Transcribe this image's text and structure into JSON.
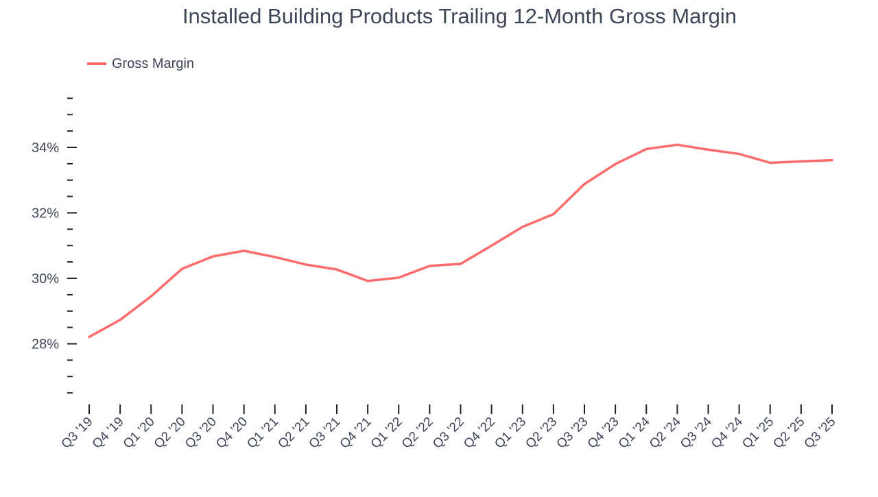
{
  "chart_data": {
    "type": "line",
    "title": "Installed Building Products Trailing 12-Month Gross Margin",
    "legend": {
      "position": "top-left",
      "entries": [
        "Gross Margin"
      ]
    },
    "xlabel": "",
    "ylabel": "",
    "ylim": [
      26.5,
      35.5
    ],
    "yticks": [
      28,
      30,
      32,
      34
    ],
    "ytick_labels": [
      "28%",
      "30%",
      "32%",
      "34%"
    ],
    "grid": false,
    "categories": [
      "Q3 '19",
      "Q4 '19",
      "Q1 '20",
      "Q2 '20",
      "Q3 '20",
      "Q4 '20",
      "Q1 '21",
      "Q2 '21",
      "Q3 '21",
      "Q4 '21",
      "Q1 '22",
      "Q2 '22",
      "Q3 '22",
      "Q4 '22",
      "Q1 '23",
      "Q2 '23",
      "Q3 '23",
      "Q4 '23",
      "Q1 '24",
      "Q2 '24",
      "Q3 '24",
      "Q4 '24",
      "Q1 '25",
      "Q2 '25",
      "Q3 '25"
    ],
    "series": [
      {
        "name": "Gross Margin",
        "color": "#ff6b6b",
        "values": [
          28.21,
          28.73,
          29.45,
          30.29,
          30.67,
          30.84,
          30.65,
          30.42,
          30.27,
          29.92,
          30.02,
          30.38,
          30.44,
          31.0,
          31.57,
          31.96,
          32.88,
          33.49,
          33.95,
          34.08,
          33.93,
          33.8,
          33.53,
          33.57,
          33.61
        ]
      }
    ]
  }
}
